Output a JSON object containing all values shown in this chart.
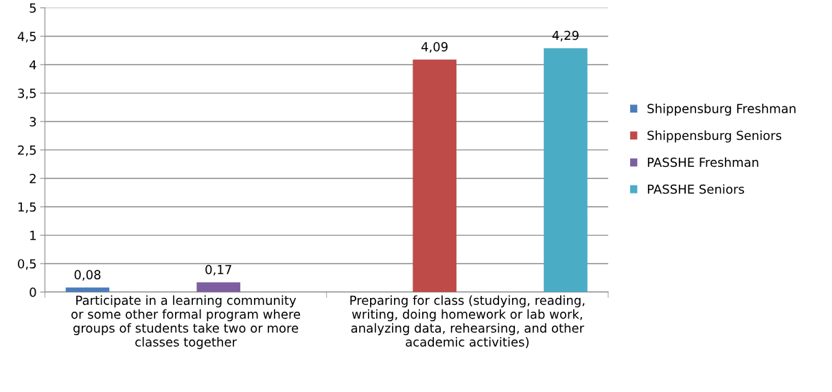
{
  "chart_data": {
    "type": "bar",
    "categories": [
      "Participate in a learning community\nor some other formal program where\ngroups of students take two or more\nclasses together",
      "Preparing for class (studying, reading,\nwriting, doing homework or lab work,\nanalyzing data, rehearsing, and other\nacademic activities)"
    ],
    "series": [
      {
        "name": "Shippensburg Freshman",
        "color": "#4a7ebb",
        "values": [
          0.08,
          null
        ],
        "value_labels": [
          "0,08",
          null
        ]
      },
      {
        "name": "Shippensburg Seniors",
        "color": "#be4b48",
        "values": [
          null,
          4.09
        ],
        "value_labels": [
          null,
          "4,09"
        ]
      },
      {
        "name": "PASSHE Freshman",
        "color": "#7d5fa0",
        "values": [
          0.17,
          null
        ],
        "value_labels": [
          "0,17",
          null
        ]
      },
      {
        "name": "PASSHE Seniors",
        "color": "#4bacc6",
        "values": [
          null,
          4.29
        ],
        "value_labels": [
          null,
          "4,29"
        ]
      }
    ],
    "ylim": [
      0,
      5
    ],
    "yticks": [
      0,
      {
        "value": 0.5,
        "label": "0,5"
      },
      1,
      {
        "value": 1.5,
        "label": "1,5"
      },
      2,
      {
        "value": 2.5,
        "label": "2,5"
      },
      3,
      {
        "value": 3.5,
        "label": "3,5"
      },
      4,
      {
        "value": 4.5,
        "label": "4,5"
      },
      5
    ],
    "grid": "y",
    "legend": "right"
  }
}
